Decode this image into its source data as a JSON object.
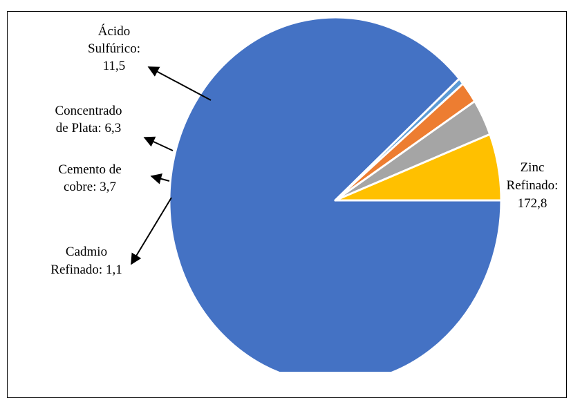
{
  "chart_data": {
    "type": "pie",
    "title": "",
    "slices": [
      {
        "name": "Zinc Refinado",
        "value": 172.8,
        "value_label": "172,8",
        "label_lines": [
          "Zinc",
          "Refinado:",
          "172,8"
        ],
        "color": "#4472C4"
      },
      {
        "name": "Cadmio Refinado",
        "value": 1.1,
        "value_label": "1,1",
        "label_lines": [
          "Cadmio",
          "Refinado: 1,1"
        ],
        "color": "#5B9BD5"
      },
      {
        "name": "Cemento de cobre",
        "value": 3.7,
        "value_label": "3,7",
        "label_lines": [
          "Cemento de",
          "cobre: 3,7"
        ],
        "color": "#ED7D31"
      },
      {
        "name": "Concentrado de Plata",
        "value": 6.3,
        "value_label": "6,3",
        "label_lines": [
          "Concentrado",
          "de Plata: 6,3"
        ],
        "color": "#A5A5A5"
      },
      {
        "name": "Ácido Sulfúrico",
        "value": 11.5,
        "value_label": "11,5",
        "label_lines": [
          "Ácido",
          "Sulfúrico:",
          "11,5"
        ],
        "color": "#FFC000"
      }
    ],
    "start_angle_deg": 0,
    "direction": "clockwise",
    "legend": "none",
    "label_style": "callouts with arrows"
  }
}
